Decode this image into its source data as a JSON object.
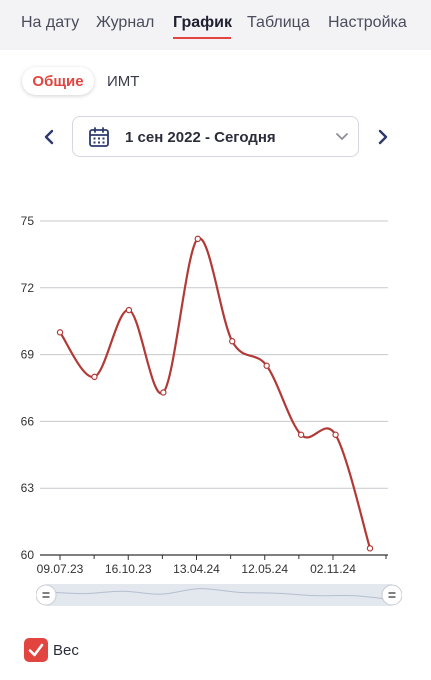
{
  "tabs": [
    {
      "label": "На дату",
      "active": false
    },
    {
      "label": "Журнал",
      "active": false
    },
    {
      "label": "График",
      "active": true
    },
    {
      "label": "Таблица",
      "active": false
    },
    {
      "label": "Настройка",
      "active": false
    }
  ],
  "subtabs": {
    "general": "Общие",
    "bmi": "ИМТ",
    "active": "general"
  },
  "date_range": {
    "label": "1 сен 2022 - Сегодня"
  },
  "icons": {
    "prev": "chevron-left-icon",
    "next": "chevron-right-icon",
    "calendar": "calendar-icon",
    "dropdown": "chevron-down-icon",
    "check": "check-icon"
  },
  "colors": {
    "accent": "#e2443f",
    "line": "#b23a36",
    "grid": "#c8c9ce",
    "axis": "#333333"
  },
  "legend": {
    "series_label": "Вес",
    "checked": true
  },
  "chart_data": {
    "type": "line",
    "smooth": true,
    "x_tick_labels": [
      "09.07.23",
      "16.10.23",
      "13.04.24",
      "12.05.24",
      "02.11.24"
    ],
    "ylim": [
      60,
      75
    ],
    "y_ticks": [
      60,
      63,
      66,
      69,
      72,
      75
    ],
    "grid": "horizontal",
    "series": [
      {
        "label": "Вес",
        "points": [
          70.0,
          68.0,
          71.0,
          67.3,
          74.2,
          69.6,
          68.5,
          65.4,
          65.4,
          60.3
        ]
      }
    ]
  }
}
